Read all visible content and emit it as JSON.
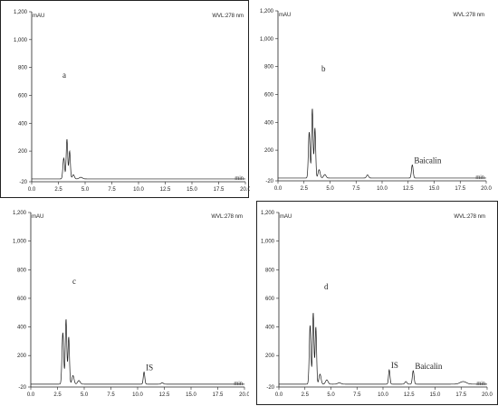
{
  "chart_data": [
    {
      "type": "line",
      "panel_label": "a",
      "unit_label": "mAU",
      "wavelength_label": "WVL:278 nm",
      "xlabel": "min",
      "xlim": [
        0,
        20
      ],
      "ylim": [
        -20,
        1200
      ],
      "x_ticks": [
        "0.0",
        "2.5",
        "5.0",
        "7.5",
        "10.0",
        "12.5",
        "15.0",
        "17.5",
        "20.0"
      ],
      "y_ticks": [
        "-20",
        "200",
        "400",
        "600",
        "800",
        "1,000",
        "1,200"
      ],
      "peaks": [
        {
          "x": 3.0,
          "y": 150,
          "w": 0.08
        },
        {
          "x": 3.3,
          "y": 285,
          "w": 0.07
        },
        {
          "x": 3.55,
          "y": 200,
          "w": 0.07
        },
        {
          "x": 3.9,
          "y": 30,
          "w": 0.1
        },
        {
          "x": 4.6,
          "y": 12,
          "w": 0.15
        }
      ],
      "annotations": []
    },
    {
      "type": "line",
      "panel_label": "b",
      "unit_label": "mAU",
      "wavelength_label": "WVL:278 nm",
      "xlabel": "min",
      "xlim": [
        0,
        20
      ],
      "ylim": [
        -20,
        1200
      ],
      "x_ticks": [
        "0.0",
        "2.5",
        "5.0",
        "7.5",
        "10.0",
        "12.5",
        "15.0",
        "17.5",
        "20.0"
      ],
      "y_ticks": [
        "-20",
        "200",
        "400",
        "600",
        "800",
        "1,000",
        "1,200"
      ],
      "peaks": [
        {
          "x": 3.0,
          "y": 330,
          "w": 0.08
        },
        {
          "x": 3.3,
          "y": 500,
          "w": 0.07
        },
        {
          "x": 3.55,
          "y": 360,
          "w": 0.07
        },
        {
          "x": 3.95,
          "y": 60,
          "w": 0.1
        },
        {
          "x": 4.5,
          "y": 25,
          "w": 0.12
        },
        {
          "x": 8.6,
          "y": 22,
          "w": 0.1
        },
        {
          "x": 12.9,
          "y": 95,
          "w": 0.08
        }
      ],
      "annotations": [
        {
          "text": "Baicalin",
          "x": 12.9,
          "y": 95
        }
      ]
    },
    {
      "type": "line",
      "panel_label": "c",
      "unit_label": "mAU",
      "wavelength_label": "WVL:278 nm",
      "xlabel": "min",
      "xlim": [
        0,
        20
      ],
      "ylim": [
        -20,
        1200
      ],
      "x_ticks": [
        "0.0",
        "2.5",
        "5.0",
        "7.5",
        "10.0",
        "12.5",
        "15.0",
        "17.5",
        "20.0"
      ],
      "y_ticks": [
        "-20",
        "200",
        "400",
        "600",
        "800",
        "1,000",
        "1,200"
      ],
      "peaks": [
        {
          "x": 3.0,
          "y": 360,
          "w": 0.08
        },
        {
          "x": 3.3,
          "y": 455,
          "w": 0.07
        },
        {
          "x": 3.55,
          "y": 330,
          "w": 0.07
        },
        {
          "x": 3.95,
          "y": 60,
          "w": 0.1
        },
        {
          "x": 4.5,
          "y": 25,
          "w": 0.12
        },
        {
          "x": 10.6,
          "y": 85,
          "w": 0.07
        },
        {
          "x": 12.3,
          "y": 10,
          "w": 0.1
        }
      ],
      "annotations": [
        {
          "text": "IS",
          "x": 10.6,
          "y": 85
        }
      ]
    },
    {
      "type": "line",
      "panel_label": "d",
      "unit_label": "mAU",
      "wavelength_label": "WVL:278 nm",
      "xlabel": "min",
      "xlim": [
        0,
        20
      ],
      "ylim": [
        -20,
        1200
      ],
      "x_ticks": [
        "0.0",
        "2.5",
        "5.0",
        "7.5",
        "10.0",
        "12.5",
        "15.0",
        "17.5",
        "20.0"
      ],
      "y_ticks": [
        "-20",
        "200",
        "400",
        "600",
        "800",
        "1,000",
        "1,200"
      ],
      "peaks": [
        {
          "x": 3.0,
          "y": 410,
          "w": 0.08
        },
        {
          "x": 3.3,
          "y": 500,
          "w": 0.07
        },
        {
          "x": 3.55,
          "y": 400,
          "w": 0.07
        },
        {
          "x": 3.95,
          "y": 70,
          "w": 0.1
        },
        {
          "x": 4.6,
          "y": 30,
          "w": 0.12
        },
        {
          "x": 5.8,
          "y": 10,
          "w": 0.15
        },
        {
          "x": 10.6,
          "y": 100,
          "w": 0.07
        },
        {
          "x": 12.2,
          "y": 18,
          "w": 0.1
        },
        {
          "x": 12.9,
          "y": 95,
          "w": 0.08
        },
        {
          "x": 17.7,
          "y": 18,
          "w": 0.3
        }
      ],
      "annotations": [
        {
          "text": "IS",
          "x": 10.6,
          "y": 100
        },
        {
          "text": "Baicalin",
          "x": 12.9,
          "y": 95
        }
      ]
    }
  ]
}
